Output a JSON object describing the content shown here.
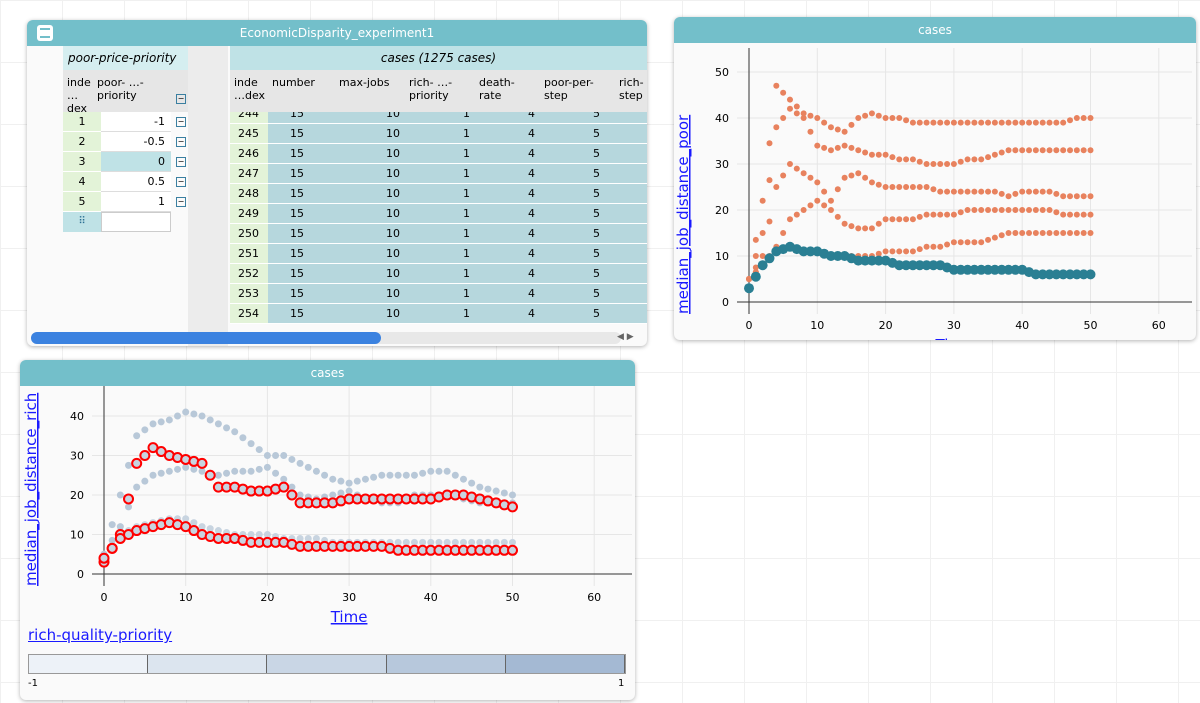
{
  "table": {
    "title": "EconomicDisparity_experiment1",
    "parent": {
      "title": "poor-price-priority",
      "headers": [
        "inde …dex",
        "poor- …-priority"
      ],
      "rows": [
        [
          "1",
          "-1"
        ],
        [
          "2",
          "-0.5"
        ],
        [
          "3",
          "0"
        ],
        [
          "4",
          "0.5"
        ],
        [
          "5",
          "1"
        ]
      ]
    },
    "child": {
      "title": "cases (1275 cases)",
      "headers": [
        "inde …dex",
        "number",
        "max-jobs",
        "rich- …-priority",
        "death- rate",
        "poor-per- step",
        "rich- step"
      ],
      "rows": [
        [
          "244",
          "15",
          "10",
          "1",
          "4",
          "5"
        ],
        [
          "245",
          "15",
          "10",
          "1",
          "4",
          "5"
        ],
        [
          "246",
          "15",
          "10",
          "1",
          "4",
          "5"
        ],
        [
          "247",
          "15",
          "10",
          "1",
          "4",
          "5"
        ],
        [
          "248",
          "15",
          "10",
          "1",
          "4",
          "5"
        ],
        [
          "249",
          "15",
          "10",
          "1",
          "4",
          "5"
        ],
        [
          "250",
          "15",
          "10",
          "1",
          "4",
          "5"
        ],
        [
          "251",
          "15",
          "10",
          "1",
          "4",
          "5"
        ],
        [
          "252",
          "15",
          "10",
          "1",
          "4",
          "5"
        ],
        [
          "253",
          "15",
          "10",
          "1",
          "4",
          "5"
        ],
        [
          "254",
          "15",
          "10",
          "1",
          "4",
          "5"
        ]
      ]
    }
  },
  "chart_data": [
    {
      "type": "scatter",
      "title": "cases",
      "xlabel": "Time",
      "ylabel": "median_job_distance_poor",
      "xlim": [
        -5,
        65
      ],
      "ylim": [
        -3,
        52
      ],
      "xticks": [
        0,
        10,
        20,
        30,
        40,
        50,
        60
      ],
      "yticks": [
        0,
        10,
        20,
        30,
        40,
        50
      ],
      "x": [
        0,
        2,
        4,
        6,
        8,
        10,
        12,
        14,
        16,
        18,
        20,
        22,
        24,
        26,
        28,
        30,
        32,
        34,
        36,
        38,
        40,
        42,
        44,
        46,
        48,
        50
      ],
      "series": [
        {
          "color": "#e8825e",
          "values": [
            5,
            22,
            47,
            44,
            41,
            40,
            38,
            37,
            40,
            41,
            40,
            40,
            39,
            39,
            39,
            39,
            39,
            39,
            39,
            39,
            39,
            39,
            39,
            39,
            40,
            40
          ]
        },
        {
          "color": "#e8825e",
          "values": [
            5,
            15,
            38,
            42,
            40,
            34,
            33,
            34,
            33,
            32,
            32,
            31,
            31,
            30,
            30,
            30,
            31,
            31,
            32,
            33,
            33,
            33,
            33,
            33,
            33,
            33
          ]
        },
        {
          "color": "#e8825e",
          "values": [
            5,
            10,
            25,
            30,
            28,
            26,
            22,
            27,
            28,
            26,
            25,
            25,
            25,
            25,
            24,
            24,
            24,
            24,
            24,
            23,
            24,
            24,
            24,
            23,
            23,
            23
          ]
        },
        {
          "color": "#e8825e",
          "values": [
            5,
            8,
            12,
            18,
            20,
            22,
            20,
            17,
            16,
            16,
            18,
            18,
            18,
            19,
            19,
            19,
            20,
            20,
            20,
            20,
            20,
            20,
            20,
            19,
            19,
            19
          ]
        },
        {
          "color": "#e8825e",
          "values": [
            5,
            8,
            11,
            12,
            11,
            11,
            10,
            10,
            10,
            10,
            11,
            11,
            11,
            12,
            12,
            13,
            13,
            13,
            14,
            15,
            15,
            15,
            15,
            15,
            15,
            15
          ]
        },
        {
          "color": "#2a7f93",
          "values": [
            3,
            8,
            11,
            12,
            11,
            11,
            10,
            10,
            9,
            9,
            9,
            8,
            8,
            8,
            8,
            7,
            7,
            7,
            7,
            7,
            7,
            6,
            6,
            6,
            6,
            6
          ]
        }
      ]
    },
    {
      "type": "scatter",
      "title": "cases",
      "xlabel": "Time",
      "ylabel": "median_job_distance_rich",
      "xlim": [
        -5,
        65
      ],
      "ylim": [
        -3,
        43
      ],
      "xticks": [
        0,
        10,
        20,
        30,
        40,
        50,
        60
      ],
      "yticks": [
        0,
        10,
        20,
        30,
        40
      ],
      "x": [
        0,
        2,
        4,
        6,
        8,
        10,
        12,
        14,
        16,
        18,
        20,
        22,
        24,
        26,
        28,
        30,
        32,
        34,
        36,
        38,
        40,
        42,
        44,
        46,
        48,
        50
      ],
      "series": [
        {
          "color": "#b8c8d8",
          "values": [
            5,
            20,
            35,
            38,
            39,
            41,
            40,
            38,
            36,
            33,
            30,
            30,
            28,
            26,
            24,
            23,
            24,
            25,
            25,
            25,
            26,
            26,
            24,
            22,
            21,
            20
          ]
        },
        {
          "color": "#b8c8d8",
          "values": [
            5,
            12,
            22,
            25,
            26,
            27,
            26,
            25,
            26,
            26,
            27,
            24,
            20,
            19,
            20,
            21,
            19,
            18,
            18,
            20,
            20,
            20,
            19,
            18,
            18,
            18
          ]
        },
        {
          "color": "#c8d4e0",
          "values": [
            4,
            10,
            12,
            13,
            14,
            14,
            12,
            11,
            10,
            10,
            10,
            9,
            9,
            9,
            8,
            8,
            8,
            8,
            8,
            8,
            8,
            8,
            8,
            8,
            8,
            8
          ]
        },
        {
          "color": "#ff0000",
          "values": [
            3,
            10,
            28,
            32,
            30,
            29,
            28,
            22,
            22,
            21,
            21,
            22,
            18,
            18,
            18,
            19,
            19,
            19,
            19,
            19,
            19,
            20,
            20,
            19,
            18,
            17
          ]
        },
        {
          "color": "#ff0000",
          "values": [
            4,
            9,
            11,
            12,
            13,
            12,
            10,
            9,
            9,
            8,
            8,
            8,
            7,
            7,
            7,
            7,
            7,
            7,
            6,
            6,
            6,
            6,
            6,
            6,
            6,
            6
          ]
        }
      ],
      "legend": {
        "attribute": "rich-quality-priority",
        "min": "-1",
        "max": "1",
        "colors": [
          "#edf2f8",
          "#dce5ef",
          "#c9d6e5",
          "#b7c8dc",
          "#a4b9d3"
        ]
      }
    }
  ]
}
